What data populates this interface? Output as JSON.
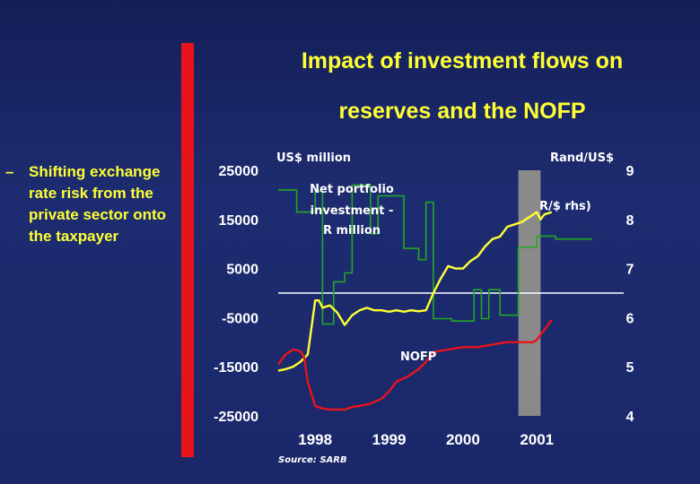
{
  "title_line1": "Impact of investment flows on",
  "title_line2": "reserves and the NOFP",
  "bullet": {
    "dash": "–",
    "text": "Shifting exchange rate risk from the private sector onto the taxpayer"
  },
  "colors": {
    "background": "#1b2a6b",
    "title": "#ffff33",
    "accent_bar": "#e8141b",
    "nofp": "#e8141b",
    "rand": "#ffff33",
    "portfolio": "#22a822",
    "shade": "#8a8a8a"
  },
  "chart_data": {
    "type": "line",
    "title": "Impact of investment flows on reserves and the NOFP",
    "left_axis_label": "US$ million",
    "right_axis_label": "Rand/US$",
    "left_ylim": [
      -25000,
      25000
    ],
    "right_ylim": [
      4,
      9
    ],
    "left_ticks": [
      "25000",
      "15000",
      "5000",
      "-5000",
      "-15000",
      "-25000"
    ],
    "right_ticks": [
      "9",
      "8",
      "7",
      "6",
      "5",
      "4"
    ],
    "x_range": [
      1997.5,
      2001.75
    ],
    "x_ticks": [
      "1998",
      "1999",
      "2000",
      "2001"
    ],
    "shaded_period": [
      2000.75,
      2001.05
    ],
    "source": "Source: SARB",
    "annotations": {
      "portfolio": [
        "Net portfolio",
        "investment -",
        "R million"
      ],
      "rand": "R/$ rhs)",
      "nofp": "NOFP"
    },
    "series": [
      {
        "name": "Net portfolio investment - R million",
        "axis": "left",
        "style": "step",
        "color": "#22a822",
        "x": [
          1997.5,
          1997.75,
          1997.75,
          1998.0,
          1998.0,
          1998.1,
          1998.1,
          1998.25,
          1998.25,
          1998.4,
          1998.4,
          1998.5,
          1998.5,
          1998.75,
          1998.75,
          1998.85,
          1998.85,
          1999.2,
          1999.2,
          1999.4,
          1999.4,
          1999.5,
          1999.5,
          1999.6,
          1999.6,
          1999.85,
          1999.85,
          2000.0,
          2000.0,
          2000.15,
          2000.15,
          2000.25,
          2000.25,
          2000.35,
          2000.35,
          2000.5,
          2000.5,
          2000.75,
          2000.75,
          2001.0,
          2001.0,
          2001.25,
          2001.25,
          2001.75
        ],
        "y": [
          21000,
          21000,
          16500,
          16500,
          20700,
          20700,
          -6300,
          -6300,
          2300,
          2300,
          4100,
          4100,
          22000,
          22000,
          12100,
          12100,
          19800,
          19800,
          9100,
          9100,
          6800,
          6800,
          18500,
          18500,
          -5200,
          -5200,
          -5700,
          -5700,
          -5700,
          -5700,
          700,
          700,
          -5200,
          -5200,
          700,
          700,
          -4500,
          -4500,
          9300,
          9300,
          11600,
          11600,
          11000,
          11000
        ]
      },
      {
        "name": "R/$ (rhs)",
        "axis": "right",
        "color": "#ffff33",
        "x": [
          1997.5,
          1997.6,
          1997.7,
          1997.8,
          1997.9,
          1997.95,
          1998.0,
          1998.05,
          1998.1,
          1998.2,
          1998.3,
          1998.4,
          1998.5,
          1998.6,
          1998.7,
          1998.8,
          1998.9,
          1999.0,
          1999.1,
          1999.2,
          1999.3,
          1999.4,
          1999.5,
          1999.6,
          1999.7,
          1999.8,
          1999.9,
          2000.0,
          2000.1,
          2000.2,
          2000.3,
          2000.4,
          2000.5,
          2000.6,
          2000.7,
          2000.8,
          2000.9,
          2001.0,
          2001.05,
          2001.1,
          2001.2
        ],
        "y": [
          4.92,
          4.95,
          5.0,
          5.1,
          5.25,
          5.8,
          6.35,
          6.35,
          6.2,
          6.25,
          6.1,
          5.85,
          6.05,
          6.15,
          6.2,
          6.15,
          6.15,
          6.12,
          6.15,
          6.12,
          6.15,
          6.13,
          6.15,
          6.5,
          6.8,
          7.05,
          7.0,
          7.0,
          7.15,
          7.25,
          7.45,
          7.6,
          7.65,
          7.85,
          7.9,
          7.95,
          8.05,
          8.15,
          8.0,
          8.1,
          8.15
        ]
      },
      {
        "name": "NOFP",
        "axis": "left",
        "color": "#e8141b",
        "x": [
          1997.5,
          1997.6,
          1997.7,
          1997.8,
          1997.85,
          1997.9,
          1998.0,
          1998.1,
          1998.2,
          1998.3,
          1998.4,
          1998.5,
          1998.6,
          1998.75,
          1998.9,
          1999.0,
          1999.1,
          1999.25,
          1999.4,
          1999.5,
          1999.6,
          1999.8,
          2000.0,
          2000.2,
          2000.4,
          2000.5,
          2000.6,
          2000.75,
          2000.85,
          2000.95,
          2001.0,
          2001.1,
          2001.2
        ],
        "y": [
          -14500,
          -12500,
          -11500,
          -11800,
          -13000,
          -18000,
          -23000,
          -23500,
          -23700,
          -23700,
          -23700,
          -23200,
          -23000,
          -22500,
          -21500,
          -20000,
          -18000,
          -17000,
          -15500,
          -14000,
          -12000,
          -11500,
          -11000,
          -11000,
          -10500,
          -10200,
          -10000,
          -10000,
          -10000,
          -10000,
          -9500,
          -7500,
          -5500
        ]
      }
    ]
  }
}
